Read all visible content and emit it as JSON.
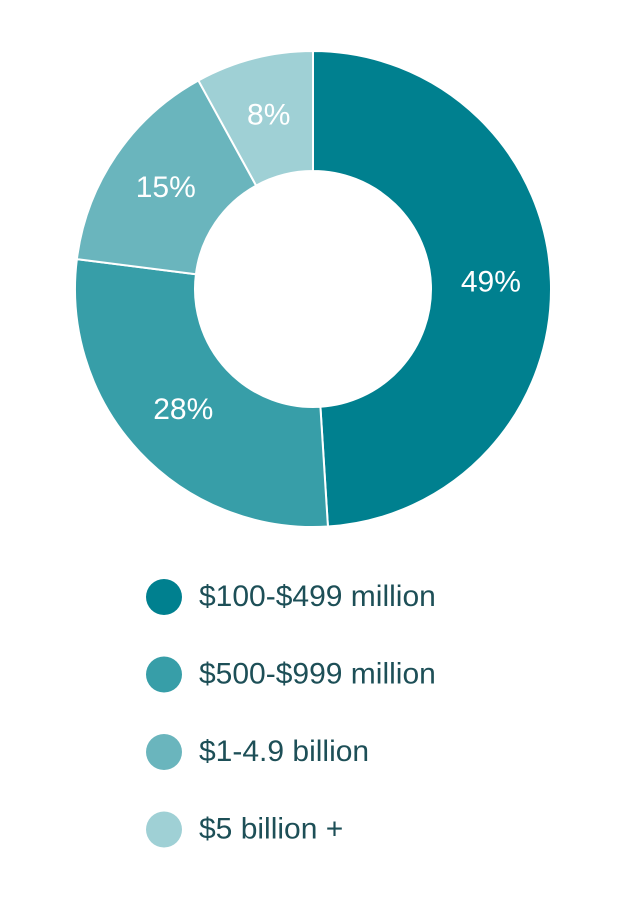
{
  "chart_data": {
    "type": "donut",
    "categories": [
      "$100-$499 million",
      "$500-$999 million",
      "$1-4.9 billion",
      "$5 billion +"
    ],
    "values": [
      49,
      28,
      15,
      8
    ],
    "value_labels": [
      "49%",
      "28%",
      "15%",
      "8%"
    ],
    "colors": [
      "#00808f",
      "#379ea8",
      "#6ab5bd",
      "#9fd0d5"
    ]
  }
}
